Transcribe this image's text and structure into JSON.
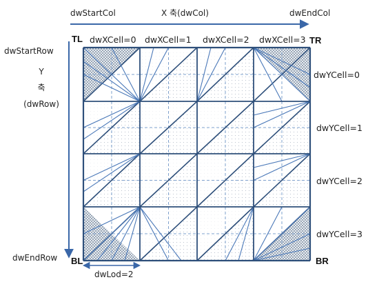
{
  "axes": {
    "start_col": "dwStartCol",
    "x_axis": "X 축(dwCol)",
    "end_col": "dwEndCol",
    "start_row": "dwStartRow",
    "y_axis_letter": "Y",
    "y_axis_word": "축",
    "y_axis_unit": "(dwRow)",
    "end_row": "dwEndRow",
    "lod": "dwLod=2"
  },
  "corners": {
    "tl": "TL",
    "tr": "TR",
    "bl": "BL",
    "br": "BR"
  },
  "x_cells": [
    "dwXCell=0",
    "dwXCell=1",
    "dwXCell=2",
    "dwXCell=3"
  ],
  "y_cells": [
    "dwYCell=0",
    "dwYCell=1",
    "dwYCell=2",
    "dwYCell=3"
  ],
  "colors": {
    "arrow": "#3a67a8",
    "grid_line": "#2e4f7a",
    "fan_line": "#4a78b8",
    "dashed": "#7ea0cc",
    "shaded_cell": "#b9c3cf"
  }
}
